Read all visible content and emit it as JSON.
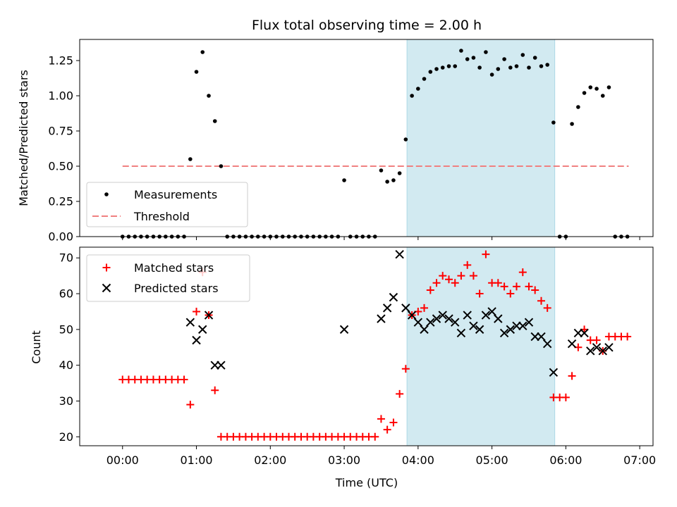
{
  "title": "Flux total observing time = 2.00 h",
  "colors": {
    "highlight": "#add8e6",
    "measurement": "#000000",
    "threshold": "#f08080",
    "matched": "#ff0000",
    "predicted": "#000000"
  },
  "chart_data": [
    {
      "type": "scatter",
      "ylabel": "Matched/Predicted stars",
      "ylim": [
        0,
        1.4
      ],
      "yticks": [
        "0.00",
        "0.25",
        "0.50",
        "0.75",
        "1.00",
        "1.25"
      ],
      "xlim": [
        -0.58,
        7.18
      ],
      "xticks": [
        0,
        1,
        2,
        3,
        4,
        5,
        6,
        7
      ],
      "highlight_span": [
        3.85,
        5.85
      ],
      "legend": {
        "position": "lower-left",
        "items": [
          "Measurements",
          "Threshold"
        ]
      },
      "threshold": {
        "name": "Threshold",
        "y": 0.5,
        "x": [
          0.0,
          6.85
        ]
      },
      "series": [
        {
          "name": "Measurements",
          "marker": "dot",
          "x": [
            0.0,
            0.083,
            0.167,
            0.25,
            0.333,
            0.417,
            0.5,
            0.583,
            0.667,
            0.75,
            0.833,
            0.917,
            1.0,
            1.083,
            1.167,
            1.25,
            1.333,
            1.417,
            1.5,
            1.583,
            1.667,
            1.75,
            1.833,
            1.917,
            2.0,
            2.083,
            2.167,
            2.25,
            2.333,
            2.417,
            2.5,
            2.583,
            2.667,
            2.75,
            2.833,
            2.917,
            3.0,
            3.083,
            3.167,
            3.25,
            3.333,
            3.417,
            3.5,
            3.583,
            3.667,
            3.75,
            3.833,
            3.917,
            4.0,
            4.083,
            4.167,
            4.25,
            4.333,
            4.417,
            4.5,
            4.583,
            4.667,
            4.75,
            4.833,
            4.917,
            5.0,
            5.083,
            5.167,
            5.25,
            5.333,
            5.417,
            5.5,
            5.583,
            5.667,
            5.75,
            5.833,
            5.917,
            6.0,
            6.083,
            6.167,
            6.25,
            6.333,
            6.417,
            6.5,
            6.583,
            6.667,
            6.75,
            6.833
          ],
          "y": [
            0,
            0,
            0,
            0,
            0,
            0,
            0,
            0,
            0,
            0,
            0,
            0.55,
            1.17,
            1.31,
            1.0,
            0.82,
            0.5,
            0,
            0,
            0,
            0,
            0,
            0,
            0,
            0,
            0,
            0,
            0,
            0,
            0,
            0,
            0,
            0,
            0,
            0,
            0,
            0.4,
            0,
            0,
            0,
            0,
            0,
            0.47,
            0.39,
            0.4,
            0.45,
            0.69,
            1.0,
            1.05,
            1.12,
            1.17,
            1.19,
            1.2,
            1.21,
            1.21,
            1.32,
            1.26,
            1.27,
            1.2,
            1.31,
            1.15,
            1.19,
            1.26,
            1.2,
            1.21,
            1.29,
            1.2,
            1.27,
            1.21,
            1.22,
            0.81,
            0,
            0,
            0.8,
            0.92,
            1.02,
            1.06,
            1.05,
            1.0,
            1.06,
            0,
            0,
            0
          ]
        }
      ]
    },
    {
      "type": "scatter",
      "xlabel": "Time (UTC)",
      "ylabel": "Count",
      "ylim": [
        17.5,
        73
      ],
      "yticks": [
        20,
        30,
        40,
        50,
        60,
        70
      ],
      "xlim": [
        -0.58,
        7.18
      ],
      "xticks": [
        0,
        1,
        2,
        3,
        4,
        5,
        6,
        7
      ],
      "xtick_labels": [
        "00:00",
        "01:00",
        "02:00",
        "03:00",
        "04:00",
        "05:00",
        "06:00",
        "07:00"
      ],
      "highlight_span": [
        3.85,
        5.85
      ],
      "legend": {
        "position": "upper-left",
        "items": [
          "Matched stars",
          "Predicted stars"
        ]
      },
      "series": [
        {
          "name": "Matched stars",
          "marker": "plus",
          "x": [
            0.0,
            0.083,
            0.167,
            0.25,
            0.333,
            0.417,
            0.5,
            0.583,
            0.667,
            0.75,
            0.833,
            0.917,
            1.0,
            1.083,
            1.167,
            1.25,
            1.333,
            1.417,
            1.5,
            1.583,
            1.667,
            1.75,
            1.833,
            1.917,
            2.0,
            2.083,
            2.167,
            2.25,
            2.333,
            2.417,
            2.5,
            2.583,
            2.667,
            2.75,
            2.833,
            2.917,
            3.0,
            3.083,
            3.167,
            3.25,
            3.333,
            3.417,
            3.5,
            3.583,
            3.667,
            3.75,
            3.833,
            3.917,
            4.0,
            4.083,
            4.167,
            4.25,
            4.333,
            4.417,
            4.5,
            4.583,
            4.667,
            4.75,
            4.833,
            4.917,
            5.0,
            5.083,
            5.167,
            5.25,
            5.333,
            5.417,
            5.5,
            5.583,
            5.667,
            5.75,
            5.833,
            5.917,
            6.0,
            6.083,
            6.167,
            6.25,
            6.333,
            6.417,
            6.5,
            6.583,
            6.667,
            6.75,
            6.833
          ],
          "y": [
            36,
            36,
            36,
            36,
            36,
            36,
            36,
            36,
            36,
            36,
            36,
            29,
            55,
            66,
            54,
            33,
            20,
            20,
            20,
            20,
            20,
            20,
            20,
            20,
            20,
            20,
            20,
            20,
            20,
            20,
            20,
            20,
            20,
            20,
            20,
            20,
            20,
            20,
            20,
            20,
            20,
            20,
            25,
            22,
            24,
            32,
            39,
            54,
            55,
            56,
            61,
            63,
            65,
            64,
            63,
            65,
            68,
            65,
            60,
            71,
            63,
            63,
            62,
            60,
            62,
            66,
            62,
            61,
            58,
            56,
            31,
            31,
            31,
            37,
            45,
            50,
            47,
            47,
            44,
            48,
            48,
            48,
            48
          ]
        },
        {
          "name": "Predicted stars",
          "marker": "x",
          "x": [
            0.917,
            1.0,
            1.083,
            1.167,
            1.25,
            1.333,
            3.0,
            3.5,
            3.583,
            3.667,
            3.75,
            3.833,
            3.917,
            4.0,
            4.083,
            4.167,
            4.25,
            4.333,
            4.417,
            4.5,
            4.583,
            4.667,
            4.75,
            4.833,
            4.917,
            5.0,
            5.083,
            5.167,
            5.25,
            5.333,
            5.417,
            5.5,
            5.583,
            5.667,
            5.75,
            5.833,
            6.083,
            6.167,
            6.25,
            6.333,
            6.417,
            6.5,
            6.583
          ],
          "y": [
            52,
            47,
            50,
            54,
            40,
            40,
            50,
            53,
            56,
            59,
            71,
            56,
            54,
            52,
            50,
            52,
            53,
            54,
            53,
            52,
            49,
            54,
            51,
            50,
            54,
            55,
            53,
            49,
            50,
            51,
            51,
            52,
            48,
            48,
            46,
            38,
            46,
            49,
            49,
            44,
            45,
            44,
            45
          ]
        }
      ]
    }
  ]
}
